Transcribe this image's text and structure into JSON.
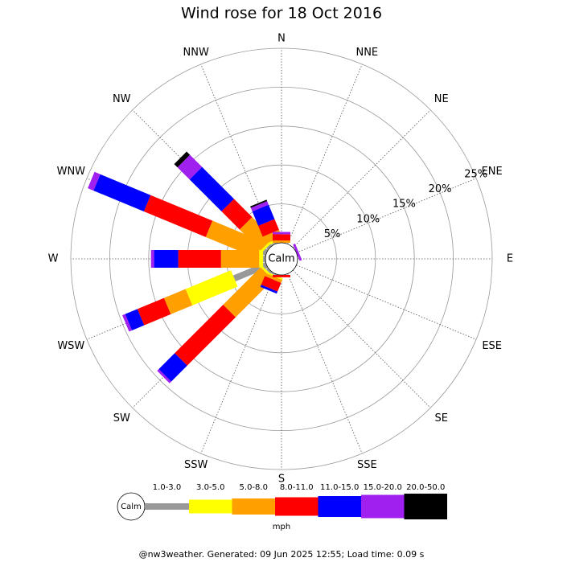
{
  "chart_data": {
    "type": "wind_rose",
    "title": "Wind rose for 18 Oct 2016",
    "directions": [
      "N",
      "NNE",
      "NE",
      "ENE",
      "E",
      "ESE",
      "SE",
      "SSE",
      "S",
      "SSW",
      "SW",
      "WSW",
      "W",
      "WNW",
      "NW",
      "NNW"
    ],
    "calm_label": "Calm",
    "rlim": [
      0,
      25
    ],
    "rticks": [
      {
        "value": 5,
        "label": "5%"
      },
      {
        "value": 10,
        "label": "10%"
      },
      {
        "value": 15,
        "label": "15%"
      },
      {
        "value": 20,
        "label": "20%"
      },
      {
        "value": 25,
        "label": "25%"
      }
    ],
    "unit": "mph",
    "series": [
      {
        "name": "1.0-3.0",
        "color": "#999999",
        "values": [
          0,
          0,
          0,
          0,
          0,
          0,
          0,
          0,
          0,
          0.2,
          0.3,
          4.5,
          0.3,
          0.5,
          0.3,
          0.2
        ]
      },
      {
        "name": "3.0-5.0",
        "color": "#ffff00",
        "values": [
          0,
          0,
          0,
          0,
          0,
          0,
          0,
          0,
          0,
          0.2,
          0.3,
          6.3,
          0.5,
          0.5,
          0.3,
          0.3
        ]
      },
      {
        "name": "5.0-8.0",
        "color": "#ffa000",
        "values": [
          0.3,
          0,
          0,
          0,
          0,
          0,
          0,
          0,
          0,
          0.4,
          6.8,
          3,
          4.9,
          7,
          3.8,
          1
        ]
      },
      {
        "name": "8.0-11.0",
        "color": "#ff0000",
        "values": [
          0.8,
          0,
          0,
          0,
          0,
          0,
          0,
          0,
          0.3,
          1.2,
          8.8,
          3.7,
          5.5,
          8.6,
          3.3,
          1.5
        ]
      },
      {
        "name": "11.0-15.0",
        "color": "#0000ff",
        "values": [
          0,
          0,
          0,
          0,
          0,
          0,
          0,
          0,
          0,
          0.3,
          2.9,
          1.7,
          3.1,
          7,
          5.8,
          2
        ]
      },
      {
        "name": "15.0-20.0",
        "color": "#a020f0",
        "values": [
          0.3,
          0,
          0,
          0.3,
          0,
          0,
          0,
          0,
          0,
          0,
          0.3,
          0.4,
          0.4,
          0.8,
          2.2,
          0.5
        ]
      },
      {
        "name": "20.0-50.0",
        "color": "#000000",
        "values": [
          0,
          0,
          0,
          0,
          0,
          0,
          0,
          0,
          0,
          0,
          0,
          0,
          0,
          0,
          0.6,
          0.2
        ]
      }
    ]
  },
  "footer": "@nw3weather. Generated: 09 Jun 2025 12:55; Load time: 0.09 s"
}
